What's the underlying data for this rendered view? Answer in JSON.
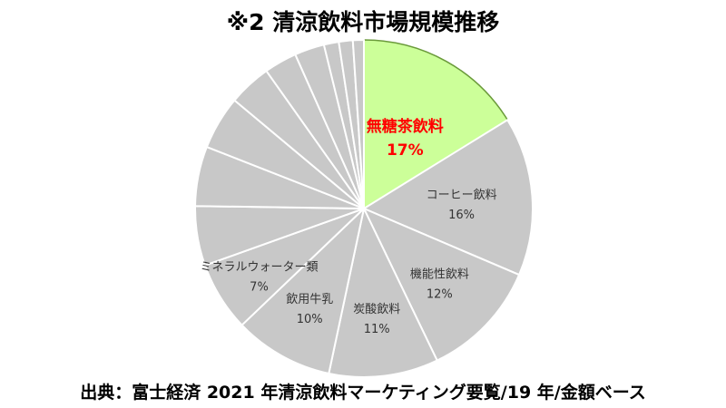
{
  "title": "※2 清涼飲料市場規模推移",
  "source": "出典：富士経済 2021 年清涼飲料マーケティング要覧/19 年/金額ベース",
  "colors": {
    "highlight_fill": "#ccff99",
    "highlight_text": "#ff0000",
    "slice_fill": "#c8c8c8",
    "stroke": "#ffffff",
    "highlight_stroke": "#6a9a3a"
  },
  "chart_data": {
    "type": "pie",
    "start_angle_deg": 0,
    "direction": "clockwise",
    "slices": [
      {
        "label": "無糖茶飲料",
        "pct_label": "17%",
        "value": 17,
        "highlight": true
      },
      {
        "label": "コーヒー飲料",
        "pct_label": "16%",
        "value": 16
      },
      {
        "label": "機能性飲料",
        "pct_label": "12%",
        "value": 12
      },
      {
        "label": "炭酸飲料",
        "pct_label": "11%",
        "value": 11
      },
      {
        "label": "飲用牛乳",
        "pct_label": "10%",
        "value": 10
      },
      {
        "label": "ミネラルウォーター類",
        "pct_label": "7%",
        "value": 7
      },
      {
        "label": "",
        "pct_label": "",
        "value": 6
      },
      {
        "label": "",
        "pct_label": "",
        "value": 6
      },
      {
        "label": "",
        "pct_label": "",
        "value": 5.4
      },
      {
        "label": "",
        "pct_label": "",
        "value": 4.3
      },
      {
        "label": "",
        "pct_label": "",
        "value": 3.3
      },
      {
        "label": "",
        "pct_label": "",
        "value": 3
      },
      {
        "label": "",
        "pct_label": "",
        "value": 1.5
      },
      {
        "label": "",
        "pct_label": "",
        "value": 1.4
      },
      {
        "label": "",
        "pct_label": "",
        "value": 1.1
      }
    ]
  }
}
